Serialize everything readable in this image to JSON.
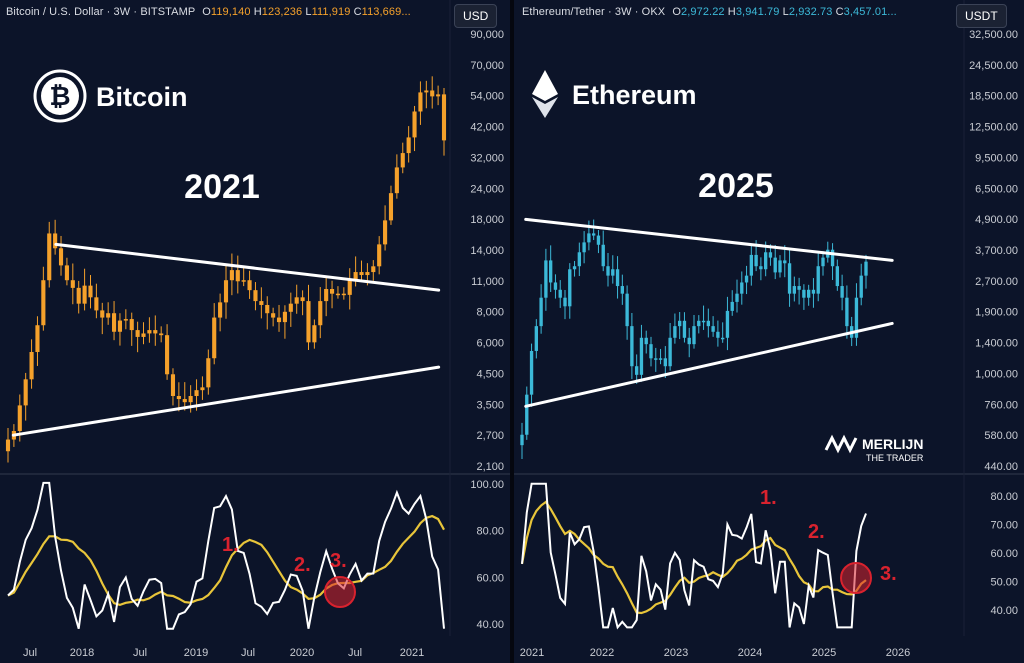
{
  "left": {
    "header": {
      "symbol": "Bitcoin / U.S. Dollar · 3W · BITSTAMP",
      "o_label": "O",
      "o": "119,140",
      "h_label": "H",
      "h": "123,236",
      "l_label": "L",
      "l": "111,919",
      "c_label": "C",
      "c": "113,669..."
    },
    "currency": "USD",
    "logo_text": "Bitcoin",
    "big_year": "2021",
    "annotations": [
      "1.",
      "2.",
      "3."
    ],
    "price_ticks": [
      "90,000",
      "70,000",
      "54,000",
      "42,000",
      "32,000",
      "24,000",
      "18,000",
      "14,000",
      "11,000",
      "8,000",
      "6,000",
      "4,500",
      "3,500",
      "2,700",
      "2,100"
    ],
    "rsi_ticks": [
      "100.00",
      "80.00",
      "60.00",
      "40.00"
    ],
    "time_ticks": [
      "Jul",
      "2018",
      "Jul",
      "2019",
      "Jul",
      "2020",
      "Jul",
      "2021"
    ]
  },
  "right": {
    "header": {
      "symbol": "Ethereum/Tether · 3W · OKX",
      "o_label": "O",
      "o": "2,972.22",
      "h_label": "H",
      "h": "3,941.79",
      "l_label": "L",
      "l": "2,932.73",
      "c_label": "C",
      "c": "3,457.01..."
    },
    "currency": "USDT",
    "logo_text": "Ethereum",
    "big_year": "2025",
    "annotations": [
      "1.",
      "2.",
      "3."
    ],
    "watermark_line1": "MERLIJN",
    "watermark_line2": "THE TRADER",
    "price_ticks": [
      "32,500.00",
      "24,500.00",
      "18,500.00",
      "12,500.00",
      "9,500.00",
      "6,500.00",
      "4,900.00",
      "3,700.00",
      "2,700.00",
      "1,900.00",
      "1,400.00",
      "1,000.00",
      "760.00",
      "580.00",
      "440.00"
    ],
    "rsi_ticks": [
      "80.00",
      "70.00",
      "60.00",
      "50.00",
      "40.00"
    ],
    "time_ticks": [
      "2021",
      "2022",
      "2023",
      "2024",
      "2025",
      "2026"
    ]
  },
  "colors": {
    "bg": "#0c1429",
    "btc": "#f5a12b",
    "eth": "#3cb9d8",
    "rsi": "#ffffff",
    "rsi_ma": "#e8c53a",
    "accent": "#d9222e"
  },
  "chart_data": [
    {
      "type": "candlestick",
      "title": "Bitcoin / U.S. Dollar · 3W · BITSTAMP",
      "scale": "log",
      "ylim": [
        1900,
        100000
      ],
      "series": [
        {
          "name": "BTC",
          "close": [
            2500,
            2700,
            3400,
            4300,
            5500,
            7000,
            10500,
            16000,
            14000,
            12000,
            10500,
            9800,
            8500,
            10000,
            9000,
            8000,
            7500,
            7800,
            6600,
            7300,
            7400,
            6700,
            6300,
            6500,
            6700,
            6500,
            6400,
            4500,
            3700,
            3600,
            3500,
            3700,
            3900,
            4000,
            5200,
            7500,
            8600,
            10500,
            11500,
            10400,
            10500,
            9600,
            8700,
            8400,
            7800,
            7500,
            7200,
            7900,
            8500,
            9000,
            8700,
            6000,
            7000,
            8700,
            9700,
            9300,
            9300,
            9200,
            10500,
            11300,
            11000,
            11300,
            11900,
            14500,
            18000,
            23000,
            29000,
            33000,
            38000,
            48000,
            57000,
            58000,
            55000,
            56000,
            37000
          ]
        }
      ],
      "trendlines": [
        {
          "from": [
            2017.8,
            14500
          ],
          "to": [
            2021.4,
            9600
          ]
        },
        {
          "from": [
            2017.4,
            2600
          ],
          "to": [
            2021.4,
            4800
          ]
        }
      ],
      "rsi": {
        "ylim": [
          35,
          100
        ]
      }
    },
    {
      "type": "candlestick",
      "title": "Ethereum/Tether · 3W · OKX",
      "scale": "log",
      "ylim": [
        420,
        36000
      ],
      "series": [
        {
          "name": "ETH",
          "close": [
            600,
            900,
            1400,
            1800,
            2400,
            3500,
            2800,
            2600,
            2400,
            2200,
            3200,
            3300,
            3800,
            4200,
            4600,
            4500,
            4100,
            3300,
            3000,
            3200,
            2700,
            2500,
            1800,
            1200,
            1100,
            1600,
            1500,
            1300,
            1300,
            1300,
            1200,
            1600,
            1800,
            1900,
            1600,
            1500,
            1800,
            1900,
            1900,
            1800,
            1700,
            1600,
            1600,
            2100,
            2300,
            2500,
            2800,
            3000,
            3700,
            3300,
            3200,
            3800,
            3600,
            3100,
            3500,
            3400,
            2500,
            2700,
            2600,
            2400,
            2600,
            2500,
            3300,
            3600,
            3900,
            3300,
            2700,
            2400,
            1800,
            1600,
            2400,
            3000,
            3457
          ]
        }
      ],
      "trendlines": [
        {
          "from": [
            2021.0,
            5300
          ],
          "to": [
            2025.9,
            3500
          ]
        },
        {
          "from": [
            2021.0,
            800
          ],
          "to": [
            2025.9,
            1850
          ]
        }
      ],
      "rsi": {
        "ylim": [
          35,
          90
        ]
      }
    }
  ]
}
